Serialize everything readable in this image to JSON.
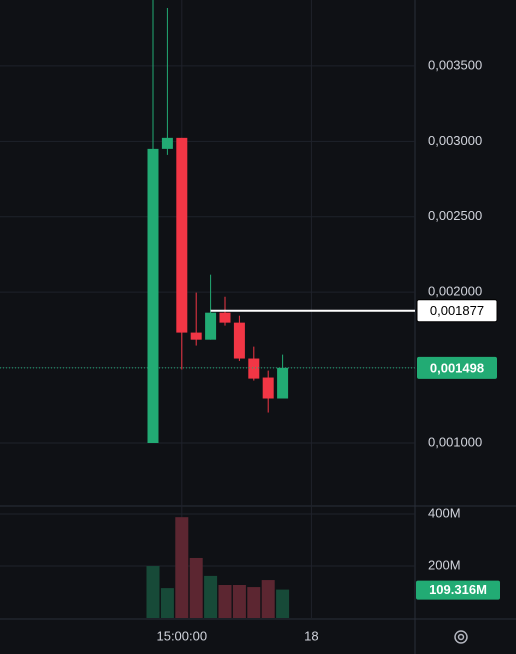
{
  "chart_data": [
    {
      "type": "candlestick",
      "categories": [
        null,
        null,
        "15:00:00",
        null,
        null,
        null,
        null,
        null,
        null,
        null
      ],
      "xticks": [
        "15:00:00",
        "18"
      ],
      "open": [
        0.001,
        0.00295,
        0.003023,
        0.001732,
        0.001685,
        0.001864,
        0.001798,
        0.00156,
        0.001434,
        0.001295
      ],
      "high": [
        0.00394,
        0.003884,
        0.003023,
        0.001997,
        0.002116,
        0.00197,
        0.001844,
        0.001639,
        0.00148,
        0.001586
      ],
      "low": [
        0.001,
        0.00291,
        0.001487,
        0.001646,
        0.001685,
        0.001778,
        0.001544,
        0.001414,
        0.001202,
        0.001295
      ],
      "close": [
        0.00295,
        0.003023,
        0.001732,
        0.001685,
        0.001864,
        0.001798,
        0.00156,
        0.001427,
        0.001295,
        0.001498
      ],
      "up_color": "#22ab74",
      "down_color": "#f23645",
      "ylim": [
        0.000589,
        0.003937
      ],
      "yticks": [
        {
          "value": 0.001,
          "label": "0,001000"
        },
        {
          "value": 0.0015,
          "label": ""
        },
        {
          "value": 0.002,
          "label": "0,002000"
        },
        {
          "value": 0.0025,
          "label": "0,002500"
        },
        {
          "value": 0.003,
          "label": "0,003000"
        },
        {
          "value": 0.0035,
          "label": "0,003500"
        }
      ],
      "price_line": {
        "value": 0.001877,
        "label": "0,001877"
      },
      "last_price": {
        "value": 0.001498,
        "label": "0,001498"
      },
      "grid": true
    },
    {
      "type": "bar",
      "values": [
        200,
        115,
        388,
        231,
        162,
        127,
        127,
        119,
        146,
        109.316
      ],
      "value_labels": [
        null,
        null,
        null,
        null,
        null,
        null,
        null,
        null,
        null,
        "109.316M"
      ],
      "up_color": "#174a38",
      "down_color": "#5c2631",
      "label_color": "#22ab74",
      "ylim": [
        0,
        431
      ],
      "yticks": [
        {
          "value": 200,
          "label": "200M"
        },
        {
          "value": 400,
          "label": "400M"
        }
      ],
      "grid": true
    }
  ]
}
